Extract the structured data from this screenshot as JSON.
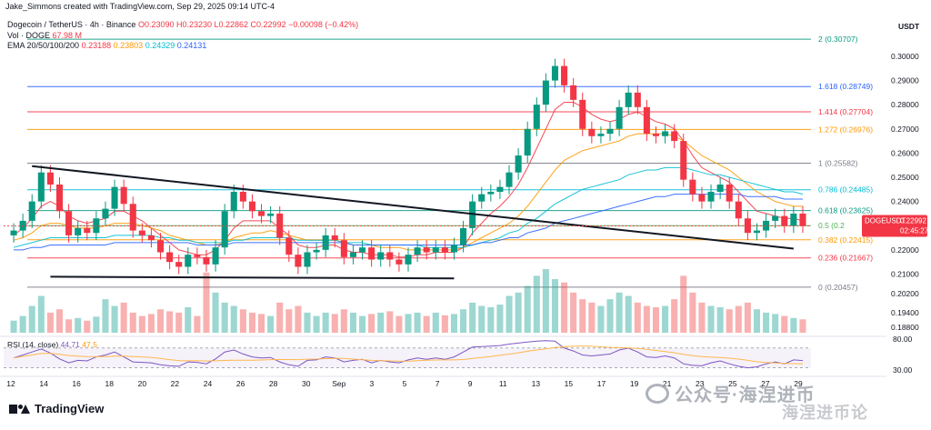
{
  "header": {
    "attribution": "Jake_Simmons created with TradingView.com, Sep 29, 2025 09:14 UTC-4"
  },
  "legend": {
    "symbol": "Dogecoin / TetherUS · 4h · Binance",
    "ohlc_label": "O0.23090 H0.23230 L0.22862 C0.22992 −0.00098 (−0.42%)",
    "volume_label": "Vol · DOGE",
    "volume_value": "67.98 M",
    "ema_label": "EMA 20/50/100/200",
    "ema20": "0.23188",
    "ema50": "0.23803",
    "ema100": "0.24329",
    "ema200": "0.24131"
  },
  "axis": {
    "currency": "USDT",
    "price_ticks": [
      "0.30000",
      "0.29000",
      "0.28000",
      "0.27000",
      "0.26000",
      "0.25000",
      "0.24000",
      "0.23000",
      "0.22000",
      "0.21000",
      "0.20200",
      "0.19400",
      "0.18800"
    ],
    "time_ticks": [
      "12",
      "14",
      "16",
      "18",
      "20",
      "22",
      "24",
      "26",
      "28",
      "30",
      "Sep",
      "3",
      "5",
      "7",
      "9",
      "11",
      "13",
      "15",
      "17",
      "19",
      "21",
      "23",
      "25",
      "27",
      "29"
    ]
  },
  "price_tag": {
    "symbol": "DOGEUSDT",
    "price": "0.22992",
    "countdown": "02:45:27"
  },
  "fib_labels": [
    "2 (0.30707)",
    "1.618 (0.28749)",
    "1.414 (0.27704)",
    "1.272 (0.26976)",
    "1 (0.25582)",
    "0.786 (0.24485)",
    "0.618 (0.23625)",
    "0.5 (0.2",
    "0.382 (0.22415)",
    "0.236 (0.21667)",
    "0 (0.20457)"
  ],
  "rsi": {
    "label": "RSI (14, close)",
    "value": "44.71",
    "ma_value": "47.5",
    "ticks": [
      "80.00",
      "30.00"
    ]
  },
  "footer": {
    "brand": "TradingView",
    "watermark": "公众号·海涅进币",
    "watermark_sub": "海涅进币论"
  },
  "chart_data": {
    "type": "candlestick",
    "title": "Dogecoin / TetherUS · 4h · Binance",
    "ylim": [
      0.185,
      0.312
    ],
    "fib_levels": [
      {
        "ratio": "2",
        "price": 0.30707,
        "color": "#089981"
      },
      {
        "ratio": "1.618",
        "price": 0.28749,
        "color": "#2962ff"
      },
      {
        "ratio": "1.414",
        "price": 0.27704,
        "color": "#f23645"
      },
      {
        "ratio": "1.272",
        "price": 0.26976,
        "color": "#ff9800"
      },
      {
        "ratio": "1",
        "price": 0.25582,
        "color": "#787b86"
      },
      {
        "ratio": "0.786",
        "price": 0.24485,
        "color": "#00bcd4"
      },
      {
        "ratio": "0.618",
        "price": 0.23625,
        "color": "#089981"
      },
      {
        "ratio": "0.5",
        "price": 0.23,
        "color": "#4caf50"
      },
      {
        "ratio": "0.382",
        "price": 0.22415,
        "color": "#ff9800"
      },
      {
        "ratio": "0.236",
        "price": 0.21667,
        "color": "#f23645"
      },
      {
        "ratio": "0",
        "price": 0.20457,
        "color": "#787b86"
      }
    ],
    "series": [
      {
        "name": "close",
        "values": [
          0.228,
          0.232,
          0.24,
          0.252,
          0.247,
          0.236,
          0.226,
          0.229,
          0.227,
          0.233,
          0.237,
          0.246,
          0.239,
          0.228,
          0.226,
          0.224,
          0.219,
          0.215,
          0.213,
          0.218,
          0.217,
          0.214,
          0.221,
          0.236,
          0.244,
          0.24,
          0.236,
          0.234,
          0.235,
          0.225,
          0.218,
          0.213,
          0.219,
          0.22,
          0.226,
          0.224,
          0.217,
          0.219,
          0.221,
          0.216,
          0.219,
          0.216,
          0.214,
          0.218,
          0.221,
          0.219,
          0.221,
          0.219,
          0.222,
          0.229,
          0.24,
          0.243,
          0.244,
          0.246,
          0.252,
          0.259,
          0.27,
          0.28,
          0.29,
          0.296,
          0.288,
          0.282,
          0.27,
          0.267,
          0.268,
          0.27,
          0.279,
          0.285,
          0.279,
          0.268,
          0.267,
          0.269,
          0.265,
          0.249,
          0.243,
          0.24,
          0.244,
          0.247,
          0.24,
          0.233,
          0.227,
          0.228,
          0.232,
          0.234,
          0.23,
          0.235,
          0.23
        ]
      },
      {
        "name": "EMA 20",
        "values": [
          0.226,
          0.229,
          0.233,
          0.238,
          0.24,
          0.238,
          0.234,
          0.232,
          0.231,
          0.232,
          0.233,
          0.236,
          0.236,
          0.234,
          0.232,
          0.229,
          0.226,
          0.223,
          0.22,
          0.219,
          0.218,
          0.218,
          0.22,
          0.224,
          0.229,
          0.232,
          0.232,
          0.232,
          0.232,
          0.229,
          0.226,
          0.222,
          0.221,
          0.221,
          0.222,
          0.222,
          0.22,
          0.219,
          0.219,
          0.218,
          0.218,
          0.218,
          0.217,
          0.217,
          0.218,
          0.218,
          0.219,
          0.219,
          0.219,
          0.221,
          0.227,
          0.231,
          0.235,
          0.238,
          0.242,
          0.247,
          0.254,
          0.262,
          0.27,
          0.278,
          0.281,
          0.281,
          0.279,
          0.276,
          0.274,
          0.273,
          0.274,
          0.276,
          0.277,
          0.275,
          0.273,
          0.272,
          0.27,
          0.265,
          0.259,
          0.254,
          0.252,
          0.25,
          0.248,
          0.244,
          0.24,
          0.236,
          0.235,
          0.234,
          0.233,
          0.233,
          0.232
        ]
      },
      {
        "name": "EMA 50",
        "values": [
          0.224,
          0.225,
          0.227,
          0.23,
          0.231,
          0.231,
          0.23,
          0.229,
          0.229,
          0.229,
          0.23,
          0.231,
          0.231,
          0.231,
          0.23,
          0.229,
          0.228,
          0.226,
          0.225,
          0.224,
          0.223,
          0.222,
          0.222,
          0.223,
          0.225,
          0.226,
          0.227,
          0.227,
          0.228,
          0.227,
          0.226,
          0.225,
          0.224,
          0.224,
          0.224,
          0.224,
          0.223,
          0.222,
          0.222,
          0.222,
          0.221,
          0.221,
          0.221,
          0.22,
          0.22,
          0.22,
          0.22,
          0.22,
          0.22,
          0.221,
          0.223,
          0.225,
          0.227,
          0.229,
          0.231,
          0.234,
          0.238,
          0.243,
          0.248,
          0.253,
          0.257,
          0.259,
          0.261,
          0.262,
          0.263,
          0.264,
          0.265,
          0.267,
          0.268,
          0.268,
          0.268,
          0.268,
          0.267,
          0.265,
          0.262,
          0.259,
          0.257,
          0.255,
          0.253,
          0.25,
          0.247,
          0.244,
          0.242,
          0.24,
          0.239,
          0.238,
          0.238
        ]
      },
      {
        "name": "EMA 100",
        "values": [
          0.221,
          0.222,
          0.223,
          0.224,
          0.225,
          0.225,
          0.225,
          0.225,
          0.225,
          0.225,
          0.225,
          0.226,
          0.226,
          0.226,
          0.226,
          0.226,
          0.225,
          0.225,
          0.224,
          0.224,
          0.223,
          0.223,
          0.223,
          0.223,
          0.224,
          0.224,
          0.225,
          0.225,
          0.225,
          0.225,
          0.225,
          0.224,
          0.224,
          0.224,
          0.224,
          0.224,
          0.223,
          0.223,
          0.223,
          0.222,
          0.222,
          0.222,
          0.222,
          0.222,
          0.222,
          0.221,
          0.221,
          0.221,
          0.221,
          0.221,
          0.222,
          0.223,
          0.224,
          0.225,
          0.227,
          0.228,
          0.231,
          0.233,
          0.236,
          0.239,
          0.241,
          0.243,
          0.245,
          0.246,
          0.247,
          0.248,
          0.249,
          0.251,
          0.252,
          0.253,
          0.253,
          0.254,
          0.254,
          0.254,
          0.253,
          0.252,
          0.251,
          0.251,
          0.25,
          0.249,
          0.248,
          0.247,
          0.246,
          0.245,
          0.244,
          0.244,
          0.243
        ]
      },
      {
        "name": "EMA 200",
        "values": [
          0.22,
          0.22,
          0.221,
          0.221,
          0.222,
          0.222,
          0.222,
          0.222,
          0.222,
          0.222,
          0.222,
          0.223,
          0.223,
          0.223,
          0.223,
          0.223,
          0.223,
          0.223,
          0.223,
          0.223,
          0.222,
          0.222,
          0.222,
          0.222,
          0.223,
          0.223,
          0.223,
          0.223,
          0.223,
          0.223,
          0.223,
          0.223,
          0.223,
          0.223,
          0.223,
          0.223,
          0.223,
          0.222,
          0.222,
          0.222,
          0.222,
          0.222,
          0.222,
          0.222,
          0.222,
          0.222,
          0.222,
          0.222,
          0.222,
          0.222,
          0.222,
          0.223,
          0.223,
          0.224,
          0.225,
          0.225,
          0.227,
          0.228,
          0.229,
          0.231,
          0.232,
          0.233,
          0.234,
          0.235,
          0.236,
          0.237,
          0.238,
          0.239,
          0.24,
          0.241,
          0.242,
          0.242,
          0.243,
          0.243,
          0.243,
          0.243,
          0.243,
          0.243,
          0.243,
          0.243,
          0.242,
          0.242,
          0.242,
          0.242,
          0.241,
          0.241,
          0.241
        ]
      },
      {
        "name": "RSI",
        "values": [
          50,
          56,
          62,
          68,
          60,
          48,
          40,
          45,
          44,
          52,
          56,
          62,
          52,
          42,
          41,
          40,
          36,
          34,
          33,
          42,
          41,
          38,
          48,
          62,
          66,
          58,
          52,
          50,
          51,
          42,
          36,
          33,
          45,
          46,
          52,
          50,
          42,
          45,
          47,
          40,
          45,
          42,
          40,
          46,
          50,
          47,
          50,
          47,
          52,
          62,
          72,
          73,
          74,
          75,
          78,
          80,
          82,
          84,
          85,
          84,
          70,
          64,
          56,
          54,
          56,
          58,
          66,
          70,
          62,
          52,
          51,
          54,
          50,
          38,
          35,
          34,
          40,
          44,
          38,
          33,
          30,
          32,
          38,
          42,
          38,
          46,
          44.71
        ]
      },
      {
        "name": "Volume",
        "values": [
          18,
          25,
          40,
          55,
          30,
          35,
          20,
          22,
          18,
          24,
          50,
          40,
          45,
          30,
          25,
          28,
          35,
          32,
          30,
          38,
          25,
          90,
          60,
          45,
          40,
          35,
          30,
          28,
          25,
          45,
          35,
          40,
          30,
          25,
          30,
          28,
          35,
          30,
          25,
          28,
          30,
          32,
          25,
          28,
          30,
          25,
          30,
          26,
          28,
          35,
          45,
          40,
          38,
          42,
          55,
          60,
          70,
          85,
          95,
          80,
          75,
          60,
          50,
          45,
          40,
          50,
          60,
          55,
          45,
          40,
          38,
          40,
          50,
          85,
          60,
          45,
          40,
          38,
          35,
          40,
          45,
          35,
          30,
          28,
          25,
          22,
          20
        ]
      }
    ],
    "trendlines": [
      {
        "name": "descending-resistance",
        "from": {
          "index": 2,
          "price": 0.2546
        },
        "to": {
          "index": 85,
          "price": 0.2205
        }
      },
      {
        "name": "horizontal-support",
        "from": {
          "index": 4,
          "price": 0.2089
        },
        "to": {
          "index": 48,
          "price": 0.2082
        }
      }
    ]
  }
}
